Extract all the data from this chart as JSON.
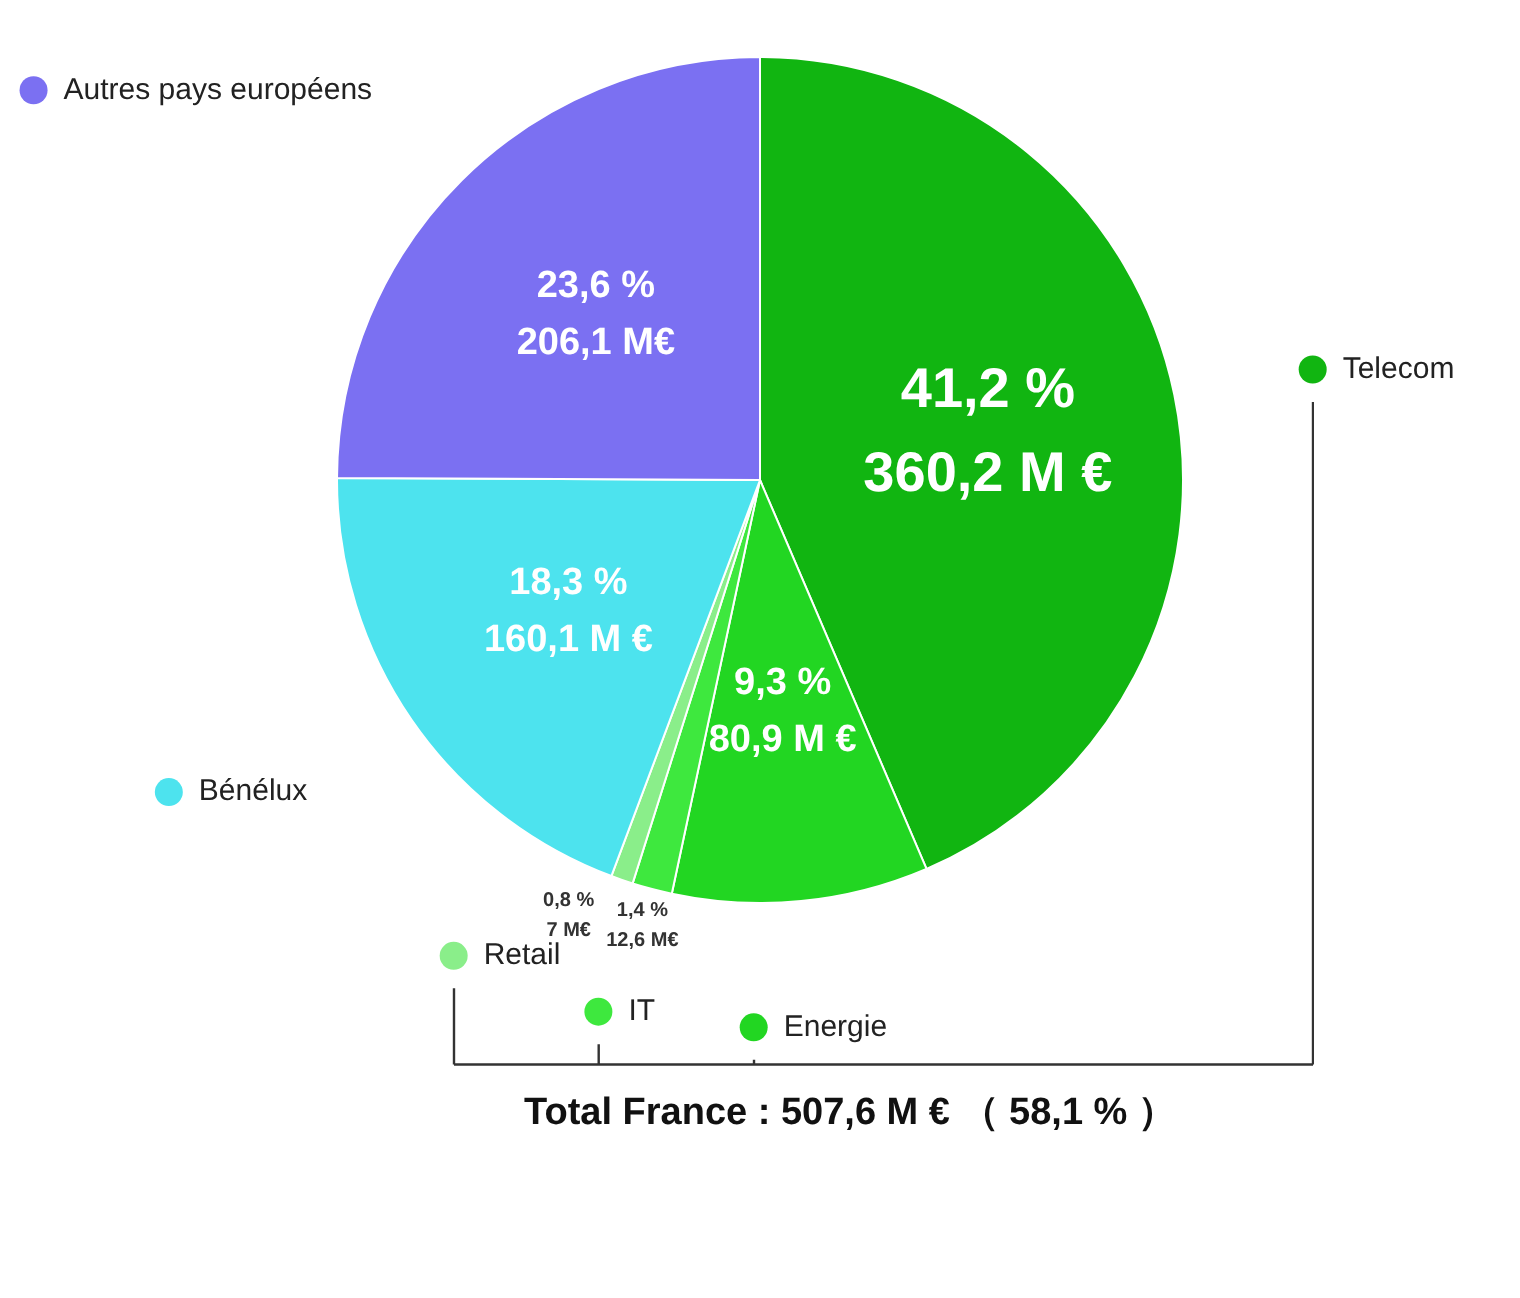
{
  "chart_data": {
    "type": "pie",
    "categories": [
      "Telecom",
      "Energie",
      "IT",
      "Retail",
      "Bénélux",
      "Autres pays européens"
    ],
    "values": [
      360.2,
      80.9,
      12.6,
      7,
      160.1,
      206.1
    ],
    "colors": [
      "#11b511",
      "#22d622",
      "#3ee83e",
      "#8aee8a",
      "#4de3ee",
      "#7b70f2"
    ],
    "value_labels": [
      "41,2 %\n360,2 M €",
      "9,3 %\n80,9 M €",
      "1,4 %\n12,6 M€",
      "0,8 %\n7 M€",
      "18,3 %\n160,1 M €",
      "23,6 %\n206,1 M€"
    ],
    "legend": "left",
    "annotations": [
      "Total France : 507,6 M € （ 58,1 % ）"
    ]
  }
}
